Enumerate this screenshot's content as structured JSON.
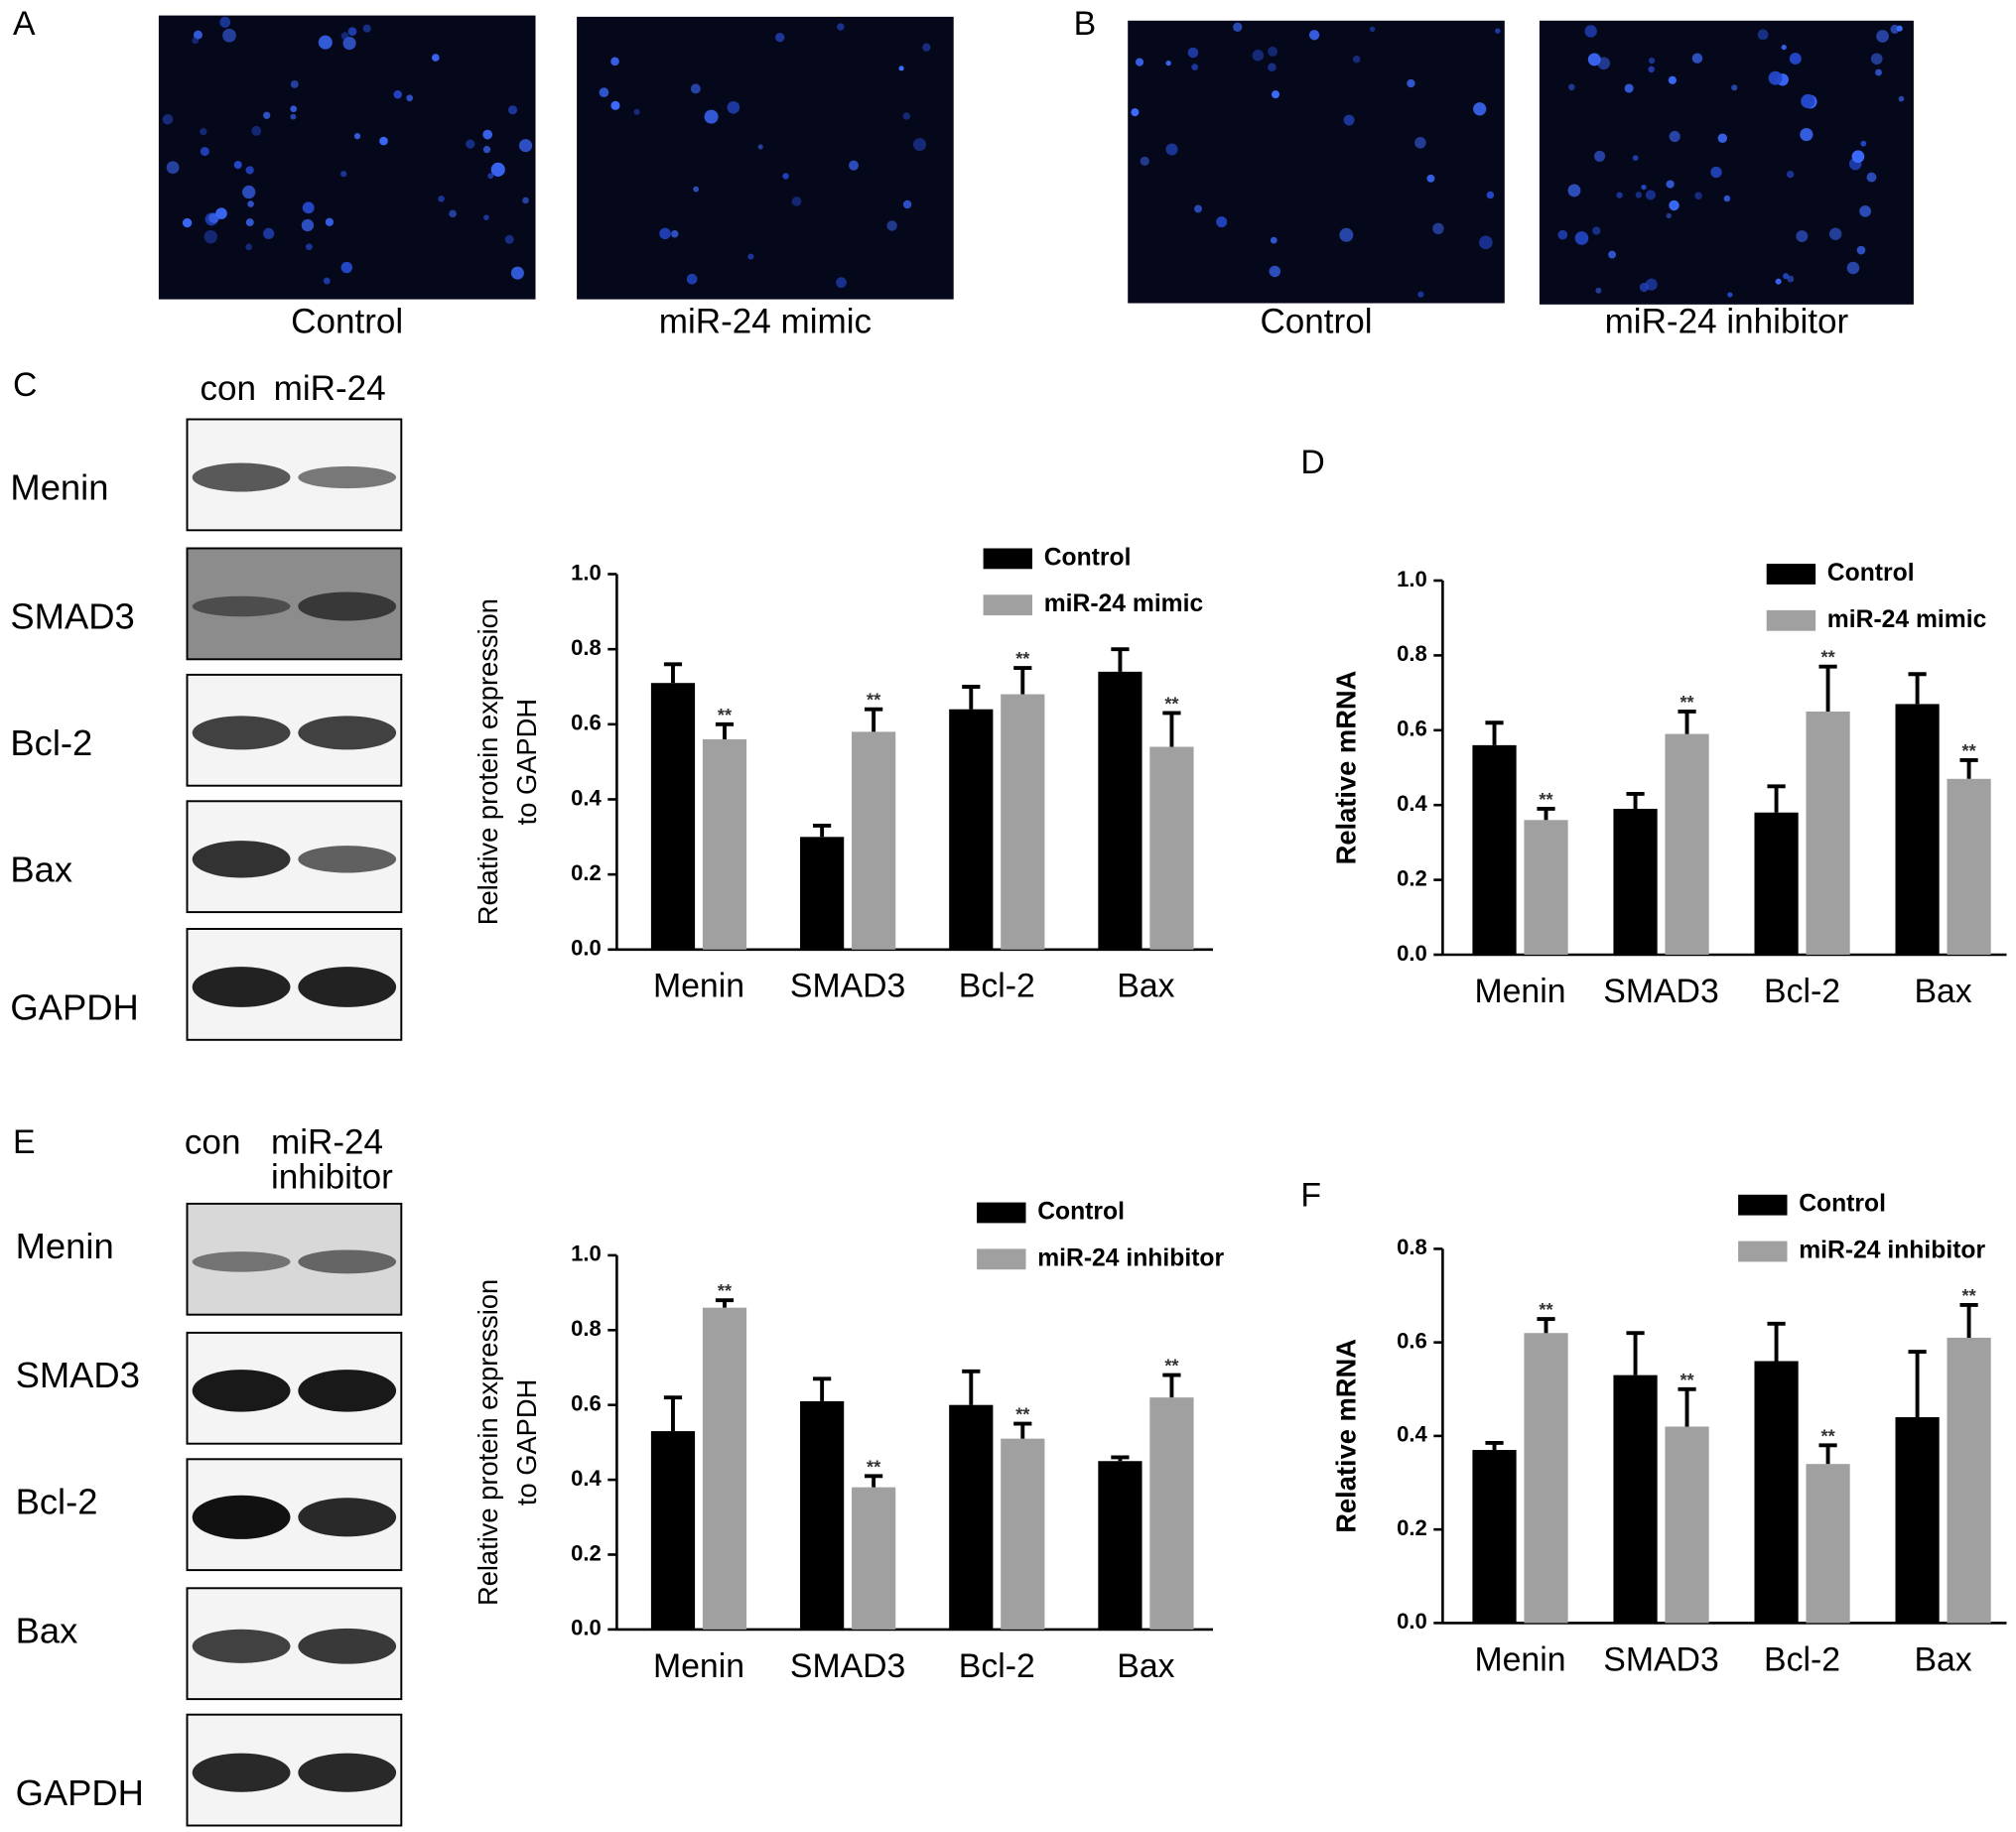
{
  "panel_labels": [
    "A",
    "B",
    "C",
    "D",
    "E",
    "F"
  ],
  "images": [
    {
      "caption": "Control"
    },
    {
      "caption": "miR-24 mimic"
    },
    {
      "caption": "Control"
    },
    {
      "caption": "miR-24 inhibitor"
    }
  ],
  "blots": [
    {
      "header": [
        "con",
        "miR-24"
      ],
      "rows": [
        "Menin",
        "SMAD3",
        "Bcl-2",
        "Bax",
        "GAPDH"
      ]
    },
    {
      "header": [
        "con",
        "miR-24",
        "inhibitor"
      ],
      "rows": [
        "Menin",
        "SMAD3",
        "Bcl-2",
        "Bax",
        "GAPDH"
      ]
    }
  ],
  "chart_data": [
    {
      "type": "bar",
      "ylabel": [
        "Relative protein expression",
        "to GAPDH"
      ],
      "categories": [
        "Menin",
        "SMAD3",
        "Bcl-2",
        "Bax"
      ],
      "ylim": [
        0,
        1
      ],
      "yticks": [
        {
          "value": 0,
          "label": "0.0"
        },
        {
          "value": 0.2,
          "label": "0.2"
        },
        {
          "value": 0.4,
          "label": "0.4"
        },
        {
          "value": 0.6,
          "label": "0.6"
        },
        {
          "value": 0.8,
          "label": "0.8"
        },
        {
          "value": 1,
          "label": "1.0"
        }
      ],
      "series": [
        {
          "name": "Control",
          "color": "#000000",
          "values": [
            0.71,
            0.3,
            0.64,
            0.74
          ],
          "errors": [
            0.05,
            0.03,
            0.06,
            0.06
          ]
        },
        {
          "name": "miR-24 mimic",
          "color": "#a0a0a0",
          "values": [
            0.56,
            0.58,
            0.68,
            0.54
          ],
          "errors": [
            0.04,
            0.06,
            0.07,
            0.09
          ],
          "significance": [
            "**",
            "**",
            "**",
            "**"
          ]
        }
      ]
    },
    {
      "type": "bar",
      "ylabel": [
        "Relative mRNA"
      ],
      "categories": [
        "Menin",
        "SMAD3",
        "Bcl-2",
        "Bax"
      ],
      "ylim": [
        0,
        1
      ],
      "yticks": [
        {
          "value": 0,
          "label": "0.0"
        },
        {
          "value": 0.2,
          "label": "0.2"
        },
        {
          "value": 0.4,
          "label": "0.4"
        },
        {
          "value": 0.6,
          "label": "0.6"
        },
        {
          "value": 0.8,
          "label": "0.8"
        },
        {
          "value": 1,
          "label": "1.0"
        }
      ],
      "series": [
        {
          "name": "Control",
          "color": "#000000",
          "values": [
            0.56,
            0.39,
            0.38,
            0.67
          ],
          "errors": [
            0.06,
            0.04,
            0.07,
            0.08
          ]
        },
        {
          "name": "miR-24 mimic",
          "color": "#a0a0a0",
          "values": [
            0.36,
            0.59,
            0.65,
            0.47
          ],
          "errors": [
            0.03,
            0.06,
            0.12,
            0.05
          ],
          "significance": [
            "**",
            "**",
            "**",
            "**"
          ]
        }
      ]
    },
    {
      "type": "bar",
      "ylabel": [
        "Relative protein expression",
        "to GAPDH"
      ],
      "categories": [
        "Menin",
        "SMAD3",
        "Bcl-2",
        "Bax"
      ],
      "ylim": [
        0,
        1
      ],
      "yticks": [
        {
          "value": 0,
          "label": "0.0"
        },
        {
          "value": 0.2,
          "label": "0.2"
        },
        {
          "value": 0.4,
          "label": "0.4"
        },
        {
          "value": 0.6,
          "label": "0.6"
        },
        {
          "value": 0.8,
          "label": "0.8"
        },
        {
          "value": 1,
          "label": "1.0"
        }
      ],
      "series": [
        {
          "name": "Control",
          "color": "#000000",
          "values": [
            0.53,
            0.61,
            0.6,
            0.45
          ],
          "errors": [
            0.09,
            0.06,
            0.09,
            0.01
          ]
        },
        {
          "name": "miR-24 inhibitor",
          "color": "#a0a0a0",
          "values": [
            0.86,
            0.38,
            0.51,
            0.62
          ],
          "errors": [
            0.02,
            0.03,
            0.04,
            0.06
          ],
          "significance": [
            "**",
            "**",
            "**",
            "**"
          ]
        }
      ]
    },
    {
      "type": "bar",
      "ylabel": [
        "Relative mRNA"
      ],
      "categories": [
        "Menin",
        "SMAD3",
        "Bcl-2",
        "Bax"
      ],
      "ylim": [
        0,
        0.8
      ],
      "yticks": [
        {
          "value": 0,
          "label": "0.0"
        },
        {
          "value": 0.2,
          "label": "0.2"
        },
        {
          "value": 0.4,
          "label": "0.4"
        },
        {
          "value": 0.6,
          "label": "0.6"
        },
        {
          "value": 0.8,
          "label": "0.8"
        }
      ],
      "series": [
        {
          "name": "Control",
          "color": "#000000",
          "values": [
            0.37,
            0.53,
            0.56,
            0.44
          ],
          "errors": [
            0.015,
            0.09,
            0.08,
            0.14
          ]
        },
        {
          "name": "miR-24 inhibitor",
          "color": "#a0a0a0",
          "values": [
            0.62,
            0.42,
            0.34,
            0.61
          ],
          "errors": [
            0.03,
            0.08,
            0.04,
            0.07
          ],
          "significance": [
            "**",
            "**",
            "**",
            "**"
          ]
        }
      ]
    }
  ]
}
